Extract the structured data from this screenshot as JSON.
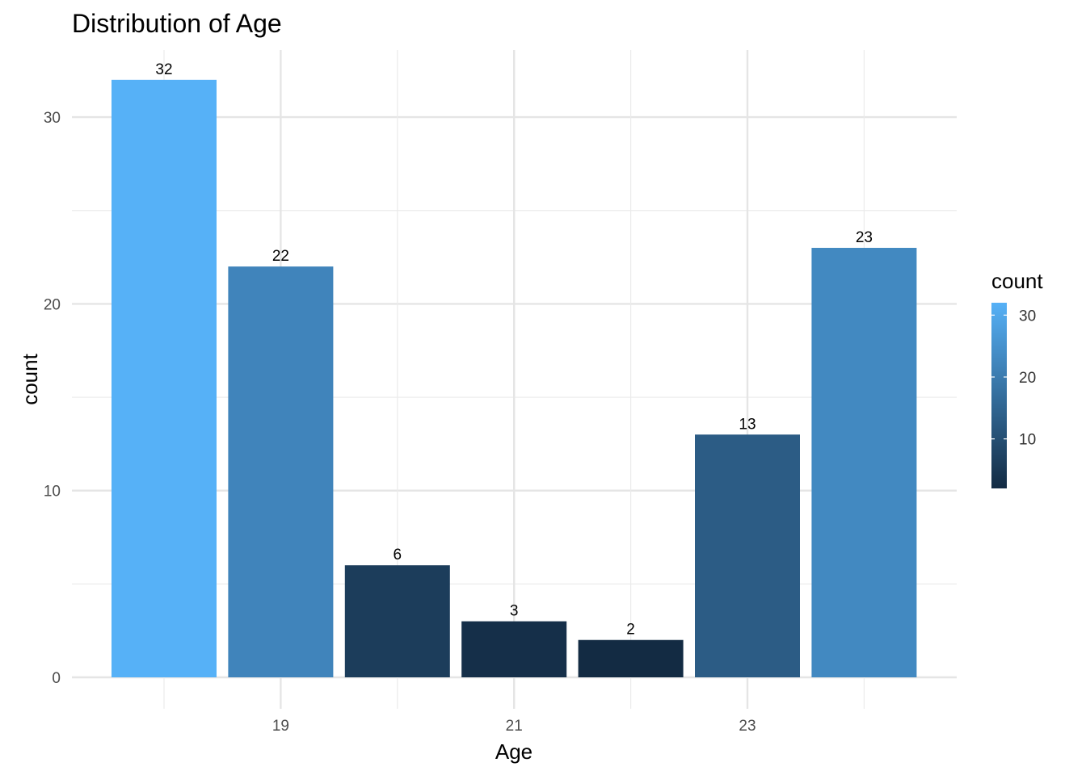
{
  "chart_data": {
    "type": "bar",
    "title": "Distribution of Age",
    "xlabel": "Age",
    "ylabel": "count",
    "x": [
      18,
      19,
      20,
      21,
      22,
      23,
      24
    ],
    "x_tick_labels": [
      "19",
      "21",
      "23"
    ],
    "x_tick_values": [
      19,
      21,
      23
    ],
    "values": [
      32,
      22,
      6,
      3,
      2,
      13,
      23
    ],
    "data_labels": [
      "32",
      "22",
      "6",
      "3",
      "2",
      "13",
      "23"
    ],
    "ylim": [
      0,
      33.5
    ],
    "y_ticks": [
      0,
      10,
      20,
      30
    ],
    "y_tick_labels": [
      "0",
      "10",
      "20",
      "30"
    ],
    "grid": true,
    "fill_scale": {
      "low_color": "#132B43",
      "high_color": "#56B1F7",
      "min": 2,
      "max": 32
    },
    "legend": {
      "title": "count",
      "placement": "right",
      "ticks": [
        10,
        20,
        30
      ],
      "tick_labels": [
        "10",
        "20",
        "30"
      ]
    }
  }
}
